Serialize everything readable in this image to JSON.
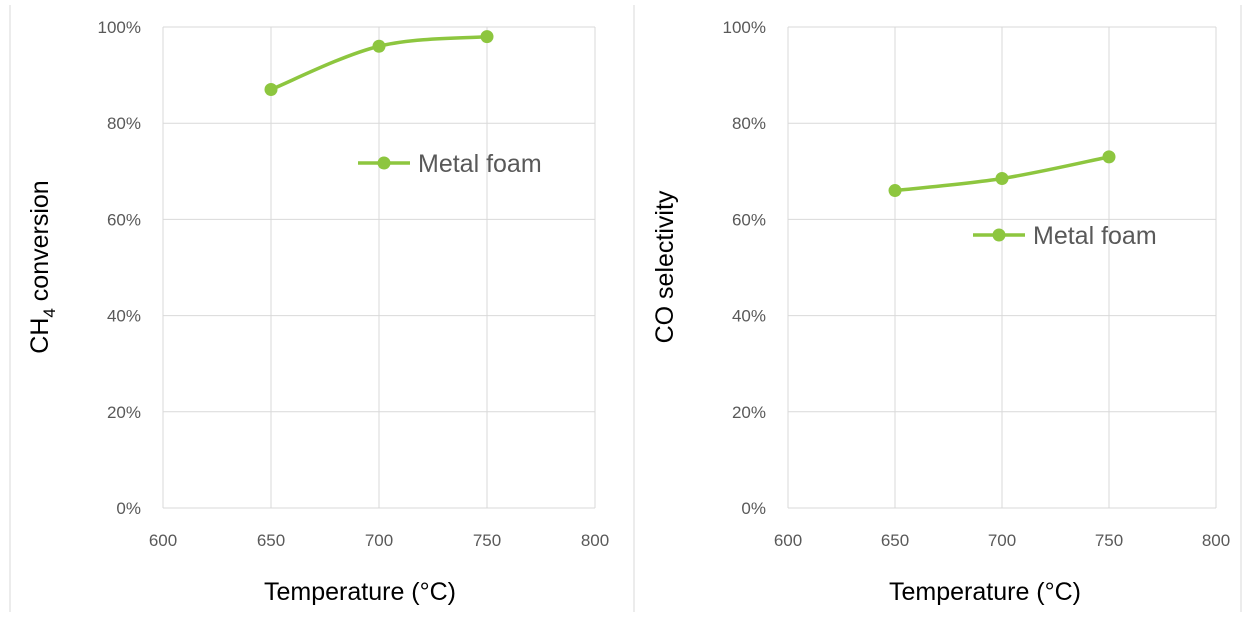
{
  "chart_data": [
    {
      "type": "line",
      "xlabel": "Temperature (°C)",
      "ylabel": {
        "prefix": "CH",
        "subscript": "4",
        "suffix": " conversion"
      },
      "xlim": [
        600,
        800
      ],
      "ylim": [
        0,
        1
      ],
      "x_ticks": [
        "600",
        "650",
        "700",
        "750",
        "800"
      ],
      "y_ticks": [
        "0%",
        "20%",
        "40%",
        "60%",
        "80%",
        "100%"
      ],
      "grid": true,
      "legend": "inside-right",
      "series": [
        {
          "name": "Metal foam",
          "color": "#8dc63f",
          "x": [
            650,
            700,
            750
          ],
          "y": [
            0.87,
            0.96,
            0.98
          ]
        }
      ]
    },
    {
      "type": "line",
      "xlabel": "Temperature (°C)",
      "ylabel": {
        "prefix": "CO selectivity",
        "subscript": "",
        "suffix": ""
      },
      "xlim": [
        600,
        800
      ],
      "ylim": [
        0,
        1
      ],
      "x_ticks": [
        "600",
        "650",
        "700",
        "750",
        "800"
      ],
      "y_ticks": [
        "0%",
        "20%",
        "40%",
        "60%",
        "80%",
        "100%"
      ],
      "grid": true,
      "legend": "inside-right",
      "series": [
        {
          "name": "Metal foam",
          "color": "#8dc63f",
          "x": [
            650,
            700,
            750
          ],
          "y": [
            0.66,
            0.685,
            0.73
          ]
        }
      ]
    }
  ]
}
